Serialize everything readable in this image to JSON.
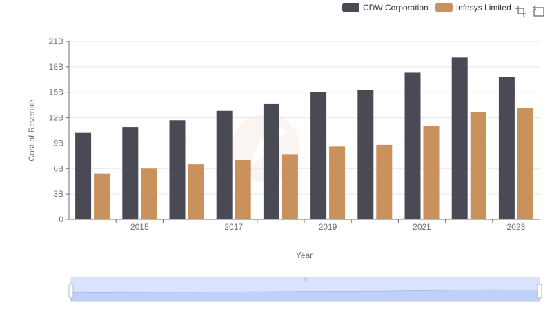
{
  "chart_data": {
    "type": "bar",
    "xlabel": "Year",
    "ylabel": "Cost of Revenue",
    "ylim": [
      0,
      21
    ],
    "y_ticks": [
      "0",
      "3B",
      "6B",
      "9B",
      "12B",
      "15B",
      "18B",
      "21B"
    ],
    "x_ticks_shown": [
      "2015",
      "2017",
      "2019",
      "2021",
      "2023"
    ],
    "categories": [
      "2014",
      "2015",
      "2016",
      "2017",
      "2018",
      "2019",
      "2020",
      "2021",
      "2022",
      "2023"
    ],
    "series": [
      {
        "name": "CDW Corporation",
        "color": "#4a4a55",
        "values": [
          10.2,
          10.9,
          11.7,
          12.8,
          13.6,
          15.0,
          15.3,
          17.3,
          19.1,
          16.8
        ]
      },
      {
        "name": "Infosys Limited",
        "color": "#c9915c",
        "values": [
          5.4,
          6.0,
          6.5,
          7.0,
          7.7,
          8.6,
          8.8,
          11.0,
          12.7,
          13.1
        ]
      }
    ],
    "grid": true,
    "legend_position": "top-right"
  },
  "legend": {
    "item1": "CDW Corporation",
    "item2": "Infosys Limited"
  },
  "toolbox": {
    "zoom_icon": "zoom-select-icon",
    "reset_icon": "zoom-reset-icon"
  },
  "datazoom": {
    "start_percent": 0,
    "end_percent": 100
  }
}
